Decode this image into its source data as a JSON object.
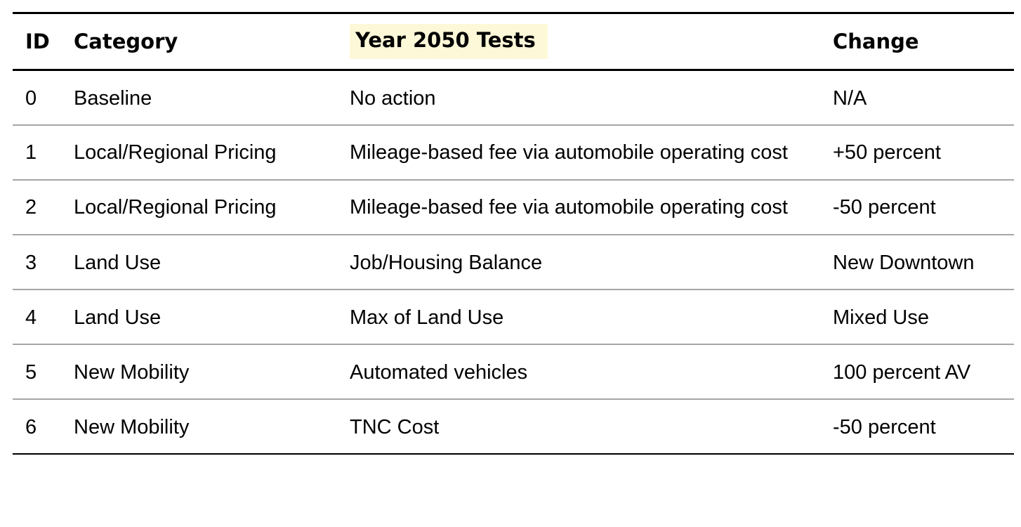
{
  "table": {
    "headers": {
      "id": "ID",
      "category": "Category",
      "tests": "Year 2050 Tests",
      "change": "Change"
    },
    "highlight_color": "#fdf8d8",
    "rows": [
      {
        "id": "0",
        "category": "Baseline",
        "test": "No action",
        "change": "N/A"
      },
      {
        "id": "1",
        "category": "Local/Regional Pricing",
        "test": "Mileage-based fee via automobile operating cost",
        "change": "+50 percent"
      },
      {
        "id": "2",
        "category": "Local/Regional Pricing",
        "test": "Mileage-based fee via automobile operating cost",
        "change": "-50 percent"
      },
      {
        "id": "3",
        "category": "Land Use",
        "test": "Job/Housing Balance",
        "change": "New Downtown"
      },
      {
        "id": "4",
        "category": "Land Use",
        "test": "Max of Land Use",
        "change": "Mixed Use"
      },
      {
        "id": "5",
        "category": "New Mobility",
        "test": "Automated vehicles",
        "change": "100 percent AV"
      },
      {
        "id": "6",
        "category": "New Mobility",
        "test": "TNC Cost",
        "change": "-50 percent"
      }
    ]
  }
}
